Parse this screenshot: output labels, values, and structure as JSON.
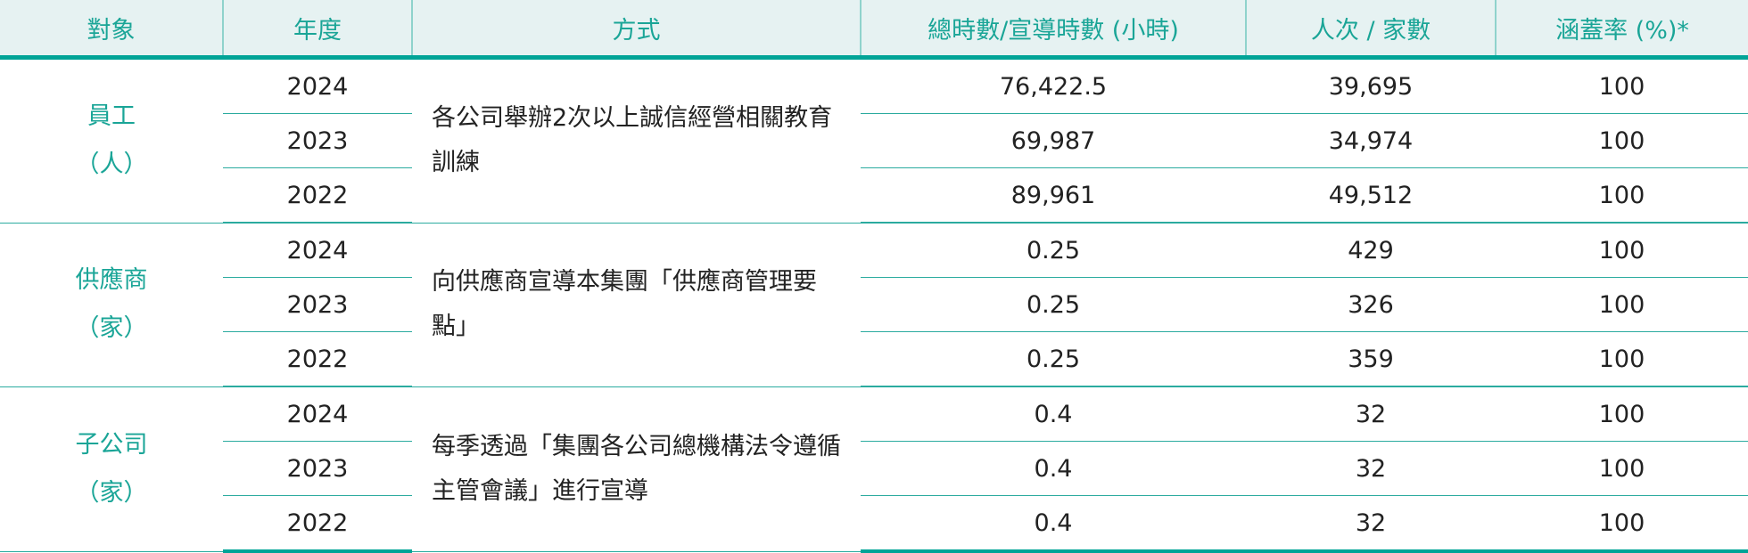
{
  "headers": [
    "對象",
    "年度",
    "方式",
    "總時數/宣導時數 (小時)",
    "人次 / 家數",
    "涵蓋率 (%)*"
  ],
  "groups": [
    {
      "subject": "員工",
      "unit": "（人）",
      "method": "各公司舉辦2次以上誠信經營相關教育訓練",
      "rows": [
        {
          "year": "2024",
          "hours": "76,422.5",
          "count": "39,695",
          "coverage": "100"
        },
        {
          "year": "2023",
          "hours": "69,987",
          "count": "34,974",
          "coverage": "100"
        },
        {
          "year": "2022",
          "hours": "89,961",
          "count": "49,512",
          "coverage": "100"
        }
      ]
    },
    {
      "subject": "供應商",
      "unit": "（家）",
      "method": "向供應商宣導本集團「供應商管理要點」",
      "rows": [
        {
          "year": "2024",
          "hours": "0.25",
          "count": "429",
          "coverage": "100"
        },
        {
          "year": "2023",
          "hours": "0.25",
          "count": "326",
          "coverage": "100"
        },
        {
          "year": "2022",
          "hours": "0.25",
          "count": "359",
          "coverage": "100"
        }
      ]
    },
    {
      "subject": "子公司",
      "unit": "（家）",
      "method": "每季透過「集團各公司總機構法令遵循主管會議」進行宣導",
      "rows": [
        {
          "year": "2024",
          "hours": "0.4",
          "count": "32",
          "coverage": "100"
        },
        {
          "year": "2023",
          "hours": "0.4",
          "count": "32",
          "coverage": "100"
        },
        {
          "year": "2022",
          "hours": "0.4",
          "count": "32",
          "coverage": "100"
        }
      ]
    }
  ],
  "colors": {
    "accent": "#00a497",
    "header_bg": "#e6f2f2",
    "header_text": "#1aa597"
  }
}
